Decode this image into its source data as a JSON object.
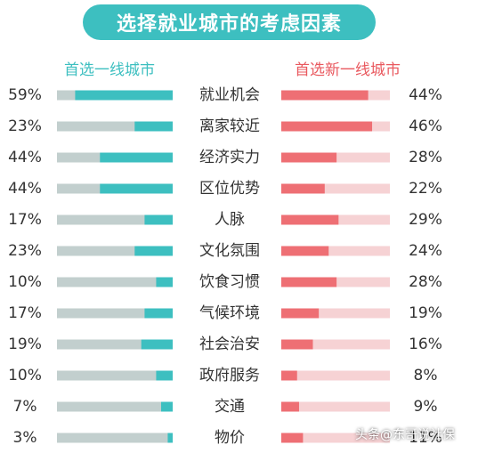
{
  "chart_data": {
    "type": "bar",
    "title": "选择就业城市的考虑因素",
    "categories": [
      "就业机会",
      "离家较近",
      "经济实力",
      "区位优势",
      "人脉",
      "文化氛围",
      "饮食习惯",
      "气候环境",
      "社会治安",
      "政府服务",
      "交通",
      "物价"
    ],
    "series": [
      {
        "name": "首选一线城市",
        "values": [
          59,
          23,
          44,
          44,
          17,
          23,
          10,
          17,
          19,
          10,
          7,
          3
        ],
        "labels": [
          "59%",
          "23%",
          "44%",
          "44%",
          "17%",
          "23%",
          "10%",
          "17%",
          "19%",
          "10%",
          "7%",
          "3%"
        ]
      },
      {
        "name": "首选新一线城市",
        "values": [
          44,
          46,
          28,
          22,
          29,
          24,
          28,
          19,
          16,
          8,
          9,
          11
        ],
        "labels": [
          "44%",
          "46%",
          "28%",
          "22%",
          "29%",
          "24%",
          "28%",
          "19%",
          "16%",
          "8%",
          "9%",
          "11%"
        ]
      }
    ],
    "grid": false
  },
  "colors": {
    "title_bg": "#3dbfc0",
    "left_fill": "#3dbfc0",
    "left_track": "#c2cfce",
    "right_fill": "#ee6f74",
    "right_track": "#f6d2d4",
    "left_legend": "#3dbfc0",
    "right_legend": "#e9595f",
    "text": "#333333"
  },
  "watermark": "头条@东哥说社保"
}
